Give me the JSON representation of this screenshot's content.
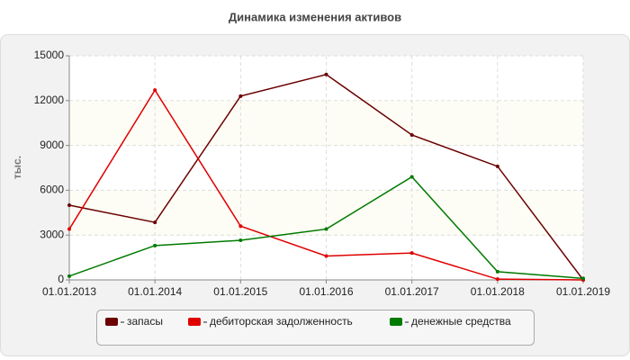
{
  "chart_data": {
    "type": "line",
    "title": "Динамика изменения активов",
    "y_label": "тыс.",
    "categories": [
      "01.01.2013",
      "01.01.2014",
      "01.01.2015",
      "01.01.2016",
      "01.01.2017",
      "01.01.2018",
      "01.01.2019"
    ],
    "series": [
      {
        "name": "запасы",
        "color": "#6b0000",
        "values": [
          5000,
          3850,
          12300,
          13750,
          9700,
          7600,
          0
        ]
      },
      {
        "name": "дебиторская задолженность",
        "color": "#e00000",
        "values": [
          3400,
          12700,
          3600,
          1600,
          1800,
          50,
          0
        ]
      },
      {
        "name": "денежные средства",
        "color": "#007a00",
        "values": [
          250,
          2300,
          2650,
          3400,
          6900,
          550,
          100
        ]
      }
    ],
    "ylim": [
      0,
      15000
    ],
    "yticks": [
      0,
      3000,
      6000,
      9000,
      12000,
      15000
    ],
    "grid": true
  }
}
